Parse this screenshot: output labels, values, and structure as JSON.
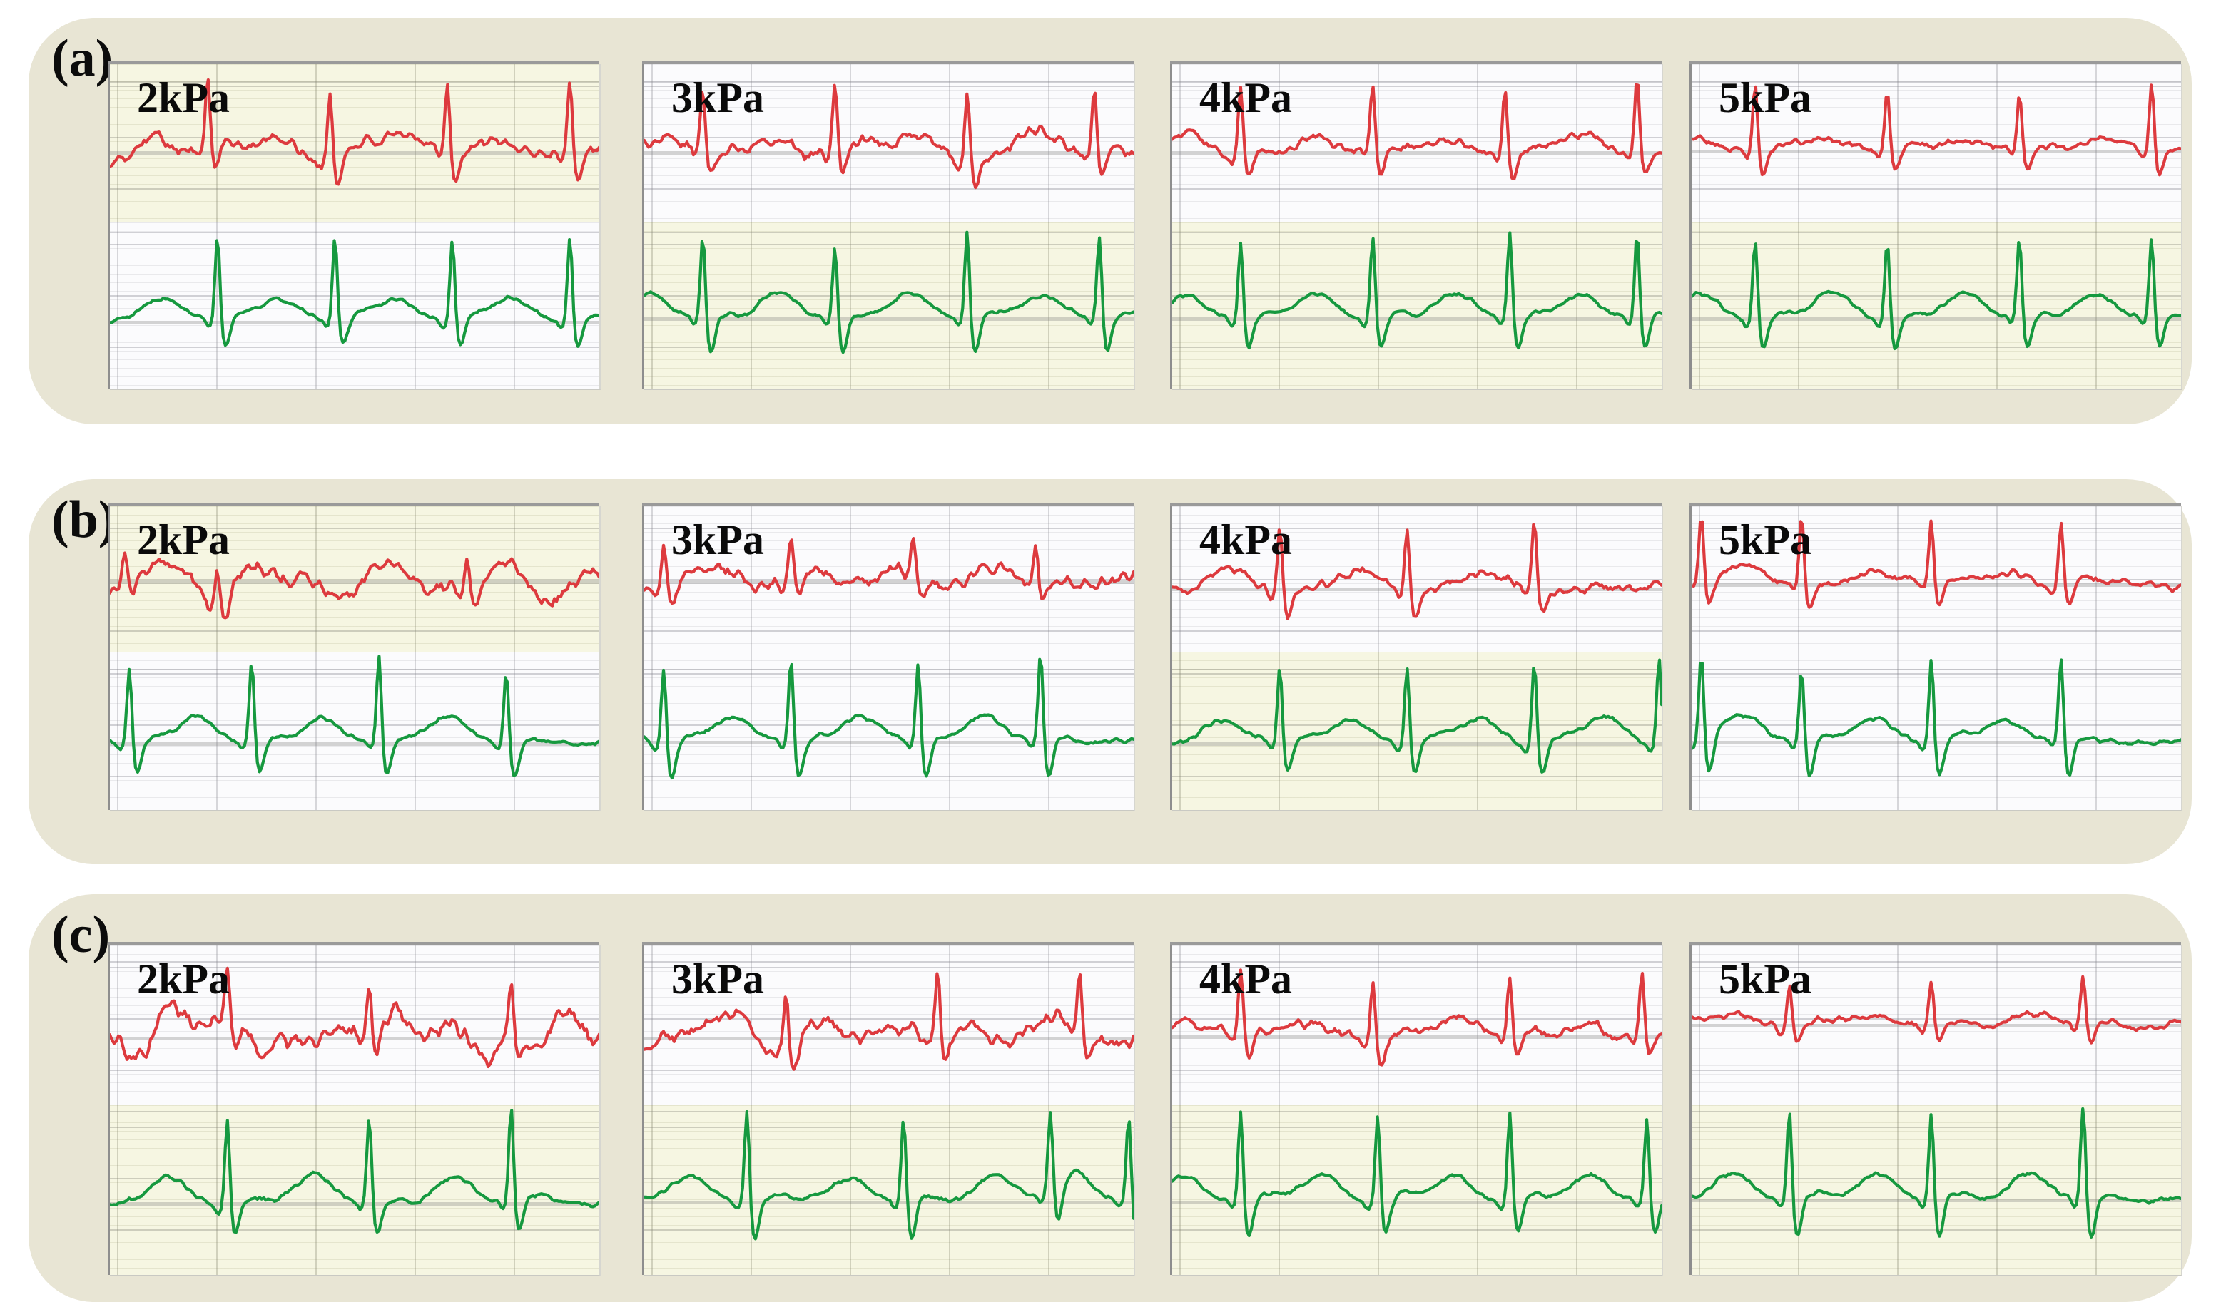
{
  "styles": {
    "page_bg": "#ffffff",
    "card_bg": "#e8e5d4",
    "chart_bg_yellow": "#f6f6e2",
    "chart_bg_white": "#fbfbfd",
    "red_trace": "#dd3a3e",
    "green_trace": "#16993f"
  },
  "chart_data": {
    "type": "line",
    "title": "",
    "description": "Figure with three rows (a), (b), (c); each row shows dual-channel ECG-like waveforms measured at four pressures. Top trace is red, bottom trace is green. Grid panels have no axis tick labels (arbitrary units).",
    "x_axis": {
      "label": "",
      "tick_labels": []
    },
    "y_axis": {
      "label": "",
      "tick_labels": []
    },
    "grid": true,
    "legend": "none",
    "colors": {
      "top_trace": "#dd3a3e",
      "bottom_trace": "#16993f"
    },
    "rows": [
      {
        "label": "(a)",
        "panels": [
          {
            "label": "2kPa",
            "top": {
              "bg": "yellow",
              "beats": [
                0.2,
                0.45,
                0.69,
                0.94
              ],
              "amp": 0.44,
              "hump": 0.09,
              "sdip": 0.16,
              "base": 0.56,
              "nw": 0.065,
              "nj": 0.018,
              "seed": 101
            },
            "bottom": {
              "bg": "white",
              "beats": [
                0.22,
                0.46,
                0.7,
                0.94
              ],
              "amp": 0.5,
              "hump": 0.15,
              "sdip": 0.15,
              "base": 0.6,
              "nw": 0.012,
              "nj": 0.006,
              "seed": 102
            }
          },
          {
            "label": "3kPa",
            "top": {
              "bg": "white",
              "beats": [
                0.12,
                0.39,
                0.66,
                0.92
              ],
              "amp": 0.45,
              "hump": 0.1,
              "sdip": 0.17,
              "base": 0.56,
              "nw": 0.055,
              "nj": 0.02,
              "seed": 103
            },
            "bottom": {
              "bg": "yellow",
              "beats": [
                0.12,
                0.39,
                0.66,
                0.93
              ],
              "amp": 0.52,
              "hump": 0.15,
              "sdip": 0.2,
              "base": 0.58,
              "nw": 0.012,
              "nj": 0.006,
              "seed": 104
            }
          },
          {
            "label": "4kPa",
            "top": {
              "bg": "white",
              "beats": [
                0.14,
                0.41,
                0.68,
                0.95
              ],
              "amp": 0.43,
              "hump": 0.1,
              "sdip": 0.15,
              "base": 0.56,
              "nw": 0.03,
              "nj": 0.012,
              "seed": 105
            },
            "bottom": {
              "bg": "yellow",
              "beats": [
                0.14,
                0.41,
                0.69,
                0.95
              ],
              "amp": 0.51,
              "hump": 0.15,
              "sdip": 0.18,
              "base": 0.58,
              "nw": 0.012,
              "nj": 0.006,
              "seed": 106
            }
          },
          {
            "label": "5kPa",
            "top": {
              "bg": "white",
              "beats": [
                0.13,
                0.4,
                0.67,
                0.94
              ],
              "amp": 0.41,
              "hump": 0.09,
              "sdip": 0.14,
              "base": 0.55,
              "nw": 0.025,
              "nj": 0.01,
              "seed": 107
            },
            "bottom": {
              "bg": "yellow",
              "beats": [
                0.13,
                0.4,
                0.67,
                0.94
              ],
              "amp": 0.51,
              "hump": 0.15,
              "sdip": 0.18,
              "base": 0.58,
              "nw": 0.012,
              "nj": 0.006,
              "seed": 108
            }
          }
        ]
      },
      {
        "label": "(b)",
        "panels": [
          {
            "label": "2kPa",
            "top": {
              "bg": "yellow",
              "beats": [
                0.03,
                0.22,
                0.73
              ],
              "amp": 0.22,
              "hump": 0.05,
              "sdip": 0.1,
              "base": 0.52,
              "nw": 0.15,
              "nj": 0.025,
              "seed": 109
            },
            "bottom": {
              "bg": "white",
              "beats": [
                0.04,
                0.29,
                0.55,
                0.81
              ],
              "amp": 0.54,
              "hump": 0.16,
              "sdip": 0.2,
              "base": 0.58,
              "nw": 0.015,
              "nj": 0.007,
              "seed": 110
            }
          },
          {
            "label": "3kPa",
            "top": {
              "bg": "white",
              "beats": [
                0.04,
                0.3,
                0.55,
                0.8
              ],
              "amp": 0.27,
              "hump": 0.08,
              "sdip": 0.13,
              "base": 0.52,
              "nw": 0.085,
              "nj": 0.02,
              "seed": 111
            },
            "bottom": {
              "bg": "white",
              "beats": [
                0.04,
                0.3,
                0.56,
                0.81
              ],
              "amp": 0.54,
              "hump": 0.15,
              "sdip": 0.22,
              "base": 0.57,
              "nw": 0.015,
              "nj": 0.007,
              "seed": 112
            }
          },
          {
            "label": "4kPa",
            "top": {
              "bg": "white",
              "beats": [
                0.22,
                0.48,
                0.74
              ],
              "amp": 0.47,
              "hump": 0.11,
              "sdip": 0.16,
              "base": 0.57,
              "nw": 0.05,
              "nj": 0.015,
              "seed": 113
            },
            "bottom": {
              "bg": "yellow",
              "beats": [
                0.22,
                0.48,
                0.74,
                0.995
              ],
              "amp": 0.52,
              "hump": 0.16,
              "sdip": 0.19,
              "base": 0.58,
              "nw": 0.015,
              "nj": 0.007,
              "seed": 114
            }
          },
          {
            "label": "5kPa",
            "top": {
              "bg": "white",
              "beats": [
                0.02,
                0.225,
                0.49,
                0.755
              ],
              "amp": 0.47,
              "hump": 0.1,
              "sdip": 0.16,
              "base": 0.54,
              "nw": 0.03,
              "nj": 0.012,
              "seed": 115
            },
            "bottom": {
              "bg": "white",
              "beats": [
                0.02,
                0.225,
                0.49,
                0.755
              ],
              "amp": 0.54,
              "hump": 0.15,
              "sdip": 0.22,
              "base": 0.57,
              "nw": 0.015,
              "nj": 0.007,
              "seed": 116
            }
          }
        ]
      },
      {
        "label": "(c)",
        "panels": [
          {
            "label": "2kPa",
            "top": {
              "bg": "white",
              "beats": [
                0.24,
                0.53,
                0.82
              ],
              "amp": 0.3,
              "hump": 0.1,
              "sdip": 0.12,
              "base": 0.58,
              "nw": 0.16,
              "nj": 0.03,
              "seed": 117
            },
            "bottom": {
              "bg": "yellow",
              "beats": [
                0.24,
                0.53,
                0.82
              ],
              "amp": 0.56,
              "hump": 0.16,
              "sdip": 0.18,
              "base": 0.58,
              "nw": 0.015,
              "nj": 0.007,
              "seed": 118
            }
          },
          {
            "label": "3kPa",
            "top": {
              "bg": "white",
              "beats": [
                0.29,
                0.6,
                0.89
              ],
              "amp": 0.42,
              "hump": 0.11,
              "sdip": 0.15,
              "base": 0.58,
              "nw": 0.1,
              "nj": 0.022,
              "seed": 119
            },
            "bottom": {
              "bg": "yellow",
              "beats": [
                0.21,
                0.53,
                0.83,
                0.99
              ],
              "amp": 0.53,
              "hump": 0.15,
              "sdip": 0.22,
              "base": 0.57,
              "nw": 0.015,
              "nj": 0.007,
              "seed": 120
            }
          },
          {
            "label": "4kPa",
            "top": {
              "bg": "white",
              "beats": [
                0.14,
                0.41,
                0.69,
                0.96
              ],
              "amp": 0.41,
              "hump": 0.1,
              "sdip": 0.15,
              "base": 0.57,
              "nw": 0.04,
              "nj": 0.015,
              "seed": 121
            },
            "bottom": {
              "bg": "yellow",
              "beats": [
                0.14,
                0.42,
                0.69,
                0.97
              ],
              "amp": 0.54,
              "hump": 0.16,
              "sdip": 0.2,
              "base": 0.57,
              "nw": 0.015,
              "nj": 0.007,
              "seed": 122
            }
          },
          {
            "label": "5kPa",
            "top": {
              "bg": "white",
              "beats": [
                0.2,
                0.49,
                0.8
              ],
              "amp": 0.28,
              "hump": 0.08,
              "sdip": 0.1,
              "base": 0.5,
              "nw": 0.025,
              "nj": 0.01,
              "seed": 123
            },
            "bottom": {
              "bg": "yellow",
              "beats": [
                0.2,
                0.49,
                0.8
              ],
              "amp": 0.56,
              "hump": 0.16,
              "sdip": 0.22,
              "base": 0.56,
              "nw": 0.015,
              "nj": 0.007,
              "seed": 124
            }
          }
        ]
      }
    ]
  }
}
